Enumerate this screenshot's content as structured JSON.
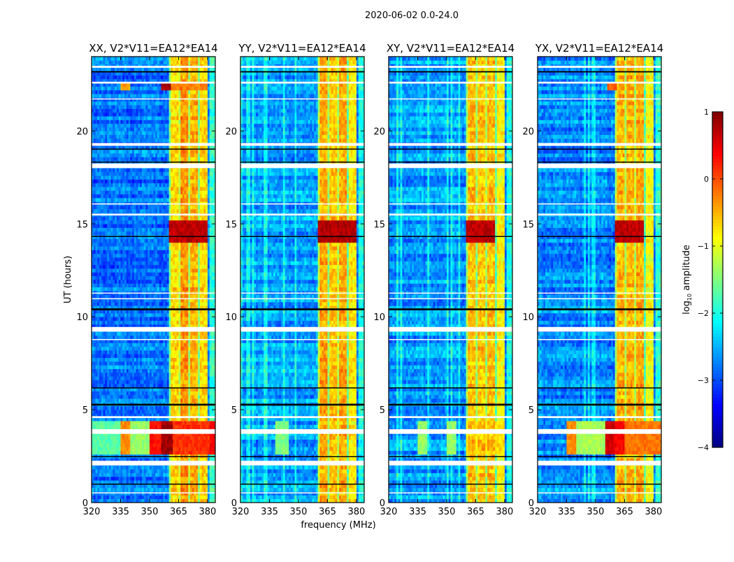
{
  "chart_data": {
    "type": "heatmap",
    "title": "2020-06-02 0.0-24.0",
    "xlabel": "frequency (MHz)",
    "ylabel": "UT (hours)",
    "xlim": [
      320,
      384
    ],
    "ylim": [
      0,
      24
    ],
    "xticks": [
      "320",
      "335",
      "350",
      "365",
      "380"
    ],
    "xtick_values": [
      320,
      335,
      350,
      365,
      380
    ],
    "yticks": [
      "0",
      "5",
      "10",
      "15",
      "20"
    ],
    "ytick_values": [
      0,
      5,
      10,
      15,
      20
    ],
    "colorbar": {
      "label_main": "log",
      "label_sub": "10",
      "label_rest": " amplitude",
      "range": [
        -4,
        1
      ],
      "colormap": "jet",
      "ticks": [
        "1",
        "0",
        "−1",
        "−2",
        "−3",
        "−4"
      ],
      "tick_values": [
        1,
        0,
        -1,
        -2,
        -3,
        -4
      ]
    },
    "flagged_time_ranges_hours": [
      [
        23.4,
        23.5
      ],
      [
        22.55,
        22.65
      ],
      [
        21.7,
        21.75
      ],
      [
        19.2,
        19.35
      ],
      [
        18.0,
        18.25
      ],
      [
        16.05,
        16.1
      ],
      [
        15.45,
        15.55
      ],
      [
        11.25,
        11.3
      ],
      [
        10.95,
        11.0
      ],
      [
        9.2,
        9.45
      ],
      [
        8.75,
        8.8
      ],
      [
        4.55,
        4.65
      ],
      [
        3.7,
        3.95
      ],
      [
        2.0,
        2.25
      ],
      [
        0.5,
        0.55
      ]
    ],
    "zero_time_ranges_hours": [
      [
        23.15,
        23.22
      ],
      [
        19.0,
        19.05
      ],
      [
        18.3,
        18.35
      ],
      [
        14.3,
        14.35
      ],
      [
        10.35,
        10.45
      ],
      [
        6.15,
        6.2
      ],
      [
        5.22,
        5.32
      ],
      [
        2.45,
        2.5
      ],
      [
        0.97,
        1.02
      ]
    ],
    "panels": [
      {
        "title": "XX, V2*V11=EA12*EA14",
        "background": -2.8,
        "bright_subbands": [
          [
            360,
            365,
            -0.7
          ],
          [
            365,
            370,
            -0.35
          ],
          [
            370,
            375,
            -0.5
          ],
          [
            375,
            380,
            -0.7
          ],
          [
            380,
            384,
            -1.9
          ]
        ],
        "events": [
          {
            "t": [
              2.6,
              4.5
            ],
            "bands": [
              [
                320,
                335,
                -1.7
              ],
              [
                335,
                340,
                -0.3
              ],
              [
                340,
                350,
                -1.4
              ],
              [
                350,
                356,
                0.3
              ],
              [
                356,
                362,
                0.85
              ],
              [
                362,
                381,
                0.15
              ],
              [
                381,
                384,
                0.4
              ]
            ]
          },
          {
            "t": [
              14.0,
              15.2
            ],
            "bands": [
              [
                360,
                380,
                0.7
              ]
            ]
          },
          {
            "t": [
              22.3,
              22.6
            ],
            "bands": [
              [
                335,
                340,
                -0.4
              ],
              [
                356,
                361,
                0.8
              ],
              [
                361,
                380,
                -0.3
              ]
            ]
          }
        ]
      },
      {
        "title": "YY, V2*V11=EA12*EA14",
        "background": -2.6,
        "bright_subbands": [
          [
            360,
            365,
            -0.45
          ],
          [
            365,
            370,
            -0.6
          ],
          [
            370,
            375,
            -0.45
          ],
          [
            375,
            380,
            -0.8
          ],
          [
            380,
            384,
            -2.0
          ]
        ],
        "events": [
          {
            "t": [
              2.6,
              4.5
            ],
            "bands": [
              [
                338,
                345,
                -1.5
              ]
            ]
          },
          {
            "t": [
              14.0,
              15.2
            ],
            "bands": [
              [
                360,
                380,
                0.75
              ]
            ]
          }
        ]
      },
      {
        "title": "XY, V2*V11=EA12*EA14",
        "background": -2.6,
        "bright_subbands": [
          [
            360,
            365,
            -0.55
          ],
          [
            365,
            370,
            -0.6
          ],
          [
            370,
            375,
            -0.55
          ],
          [
            375,
            380,
            -0.85
          ],
          [
            380,
            384,
            -2.0
          ]
        ],
        "events": [
          {
            "t": [
              2.6,
              4.5
            ],
            "bands": [
              [
                335,
                340,
                -1.4
              ],
              [
                350,
                355,
                -1.4
              ],
              [
                360,
                380,
                -0.8
              ]
            ]
          },
          {
            "t": [
              14.0,
              15.2
            ],
            "bands": [
              [
                360,
                375,
                0.7
              ]
            ]
          }
        ]
      },
      {
        "title": "YX, V2*V11=EA12*EA14",
        "background": -2.7,
        "bright_subbands": [
          [
            360,
            365,
            -0.5
          ],
          [
            365,
            370,
            -0.5
          ],
          [
            370,
            375,
            -0.45
          ],
          [
            375,
            380,
            -0.9
          ],
          [
            380,
            384,
            -1.9
          ]
        ],
        "events": [
          {
            "t": [
              2.6,
              4.5
            ],
            "bands": [
              [
                335,
                340,
                -0.3
              ],
              [
                340,
                355,
                -1.3
              ],
              [
                355,
                360,
                0.6
              ],
              [
                360,
                365,
                0.4
              ],
              [
                365,
                384,
                -0.2
              ]
            ]
          },
          {
            "t": [
              14.0,
              15.2
            ],
            "bands": [
              [
                360,
                375,
                0.7
              ]
            ]
          },
          {
            "t": [
              22.3,
              22.6
            ],
            "bands": [
              [
                356,
                361,
                -0.1
              ]
            ]
          }
        ]
      }
    ]
  }
}
